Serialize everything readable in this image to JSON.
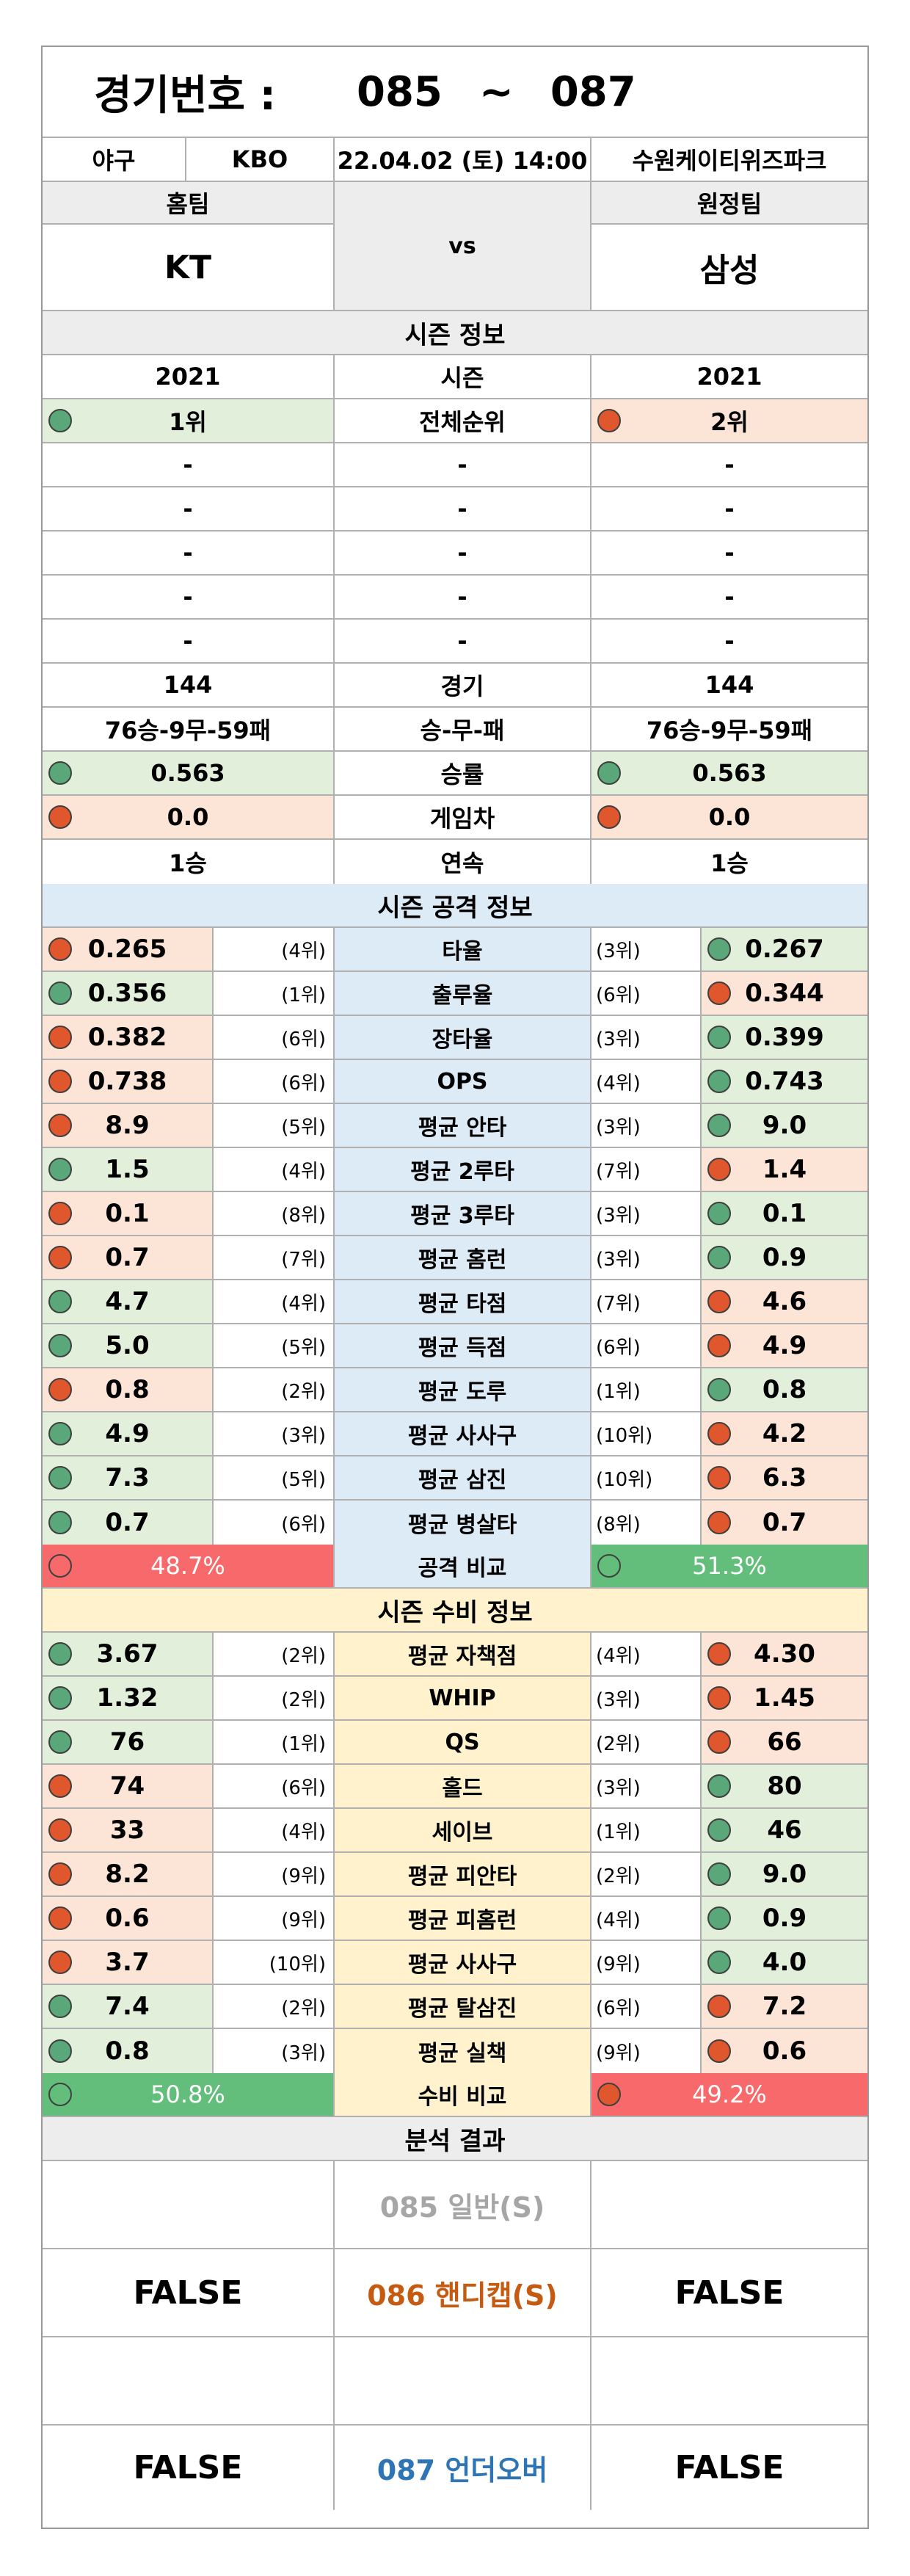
{
  "header": {
    "title_label": "경기번호 :",
    "game_from": "085",
    "tilde": "~",
    "game_to": "087",
    "sport": "야구",
    "league": "KBO",
    "datetime": "22.04.02 (토) 14:00",
    "stadium": "수원케이티위즈파크"
  },
  "teams": {
    "home_label": "홈팀",
    "away_label": "원정팀",
    "home": "KT",
    "vs": "vs",
    "away": "삼성"
  },
  "season_info": {
    "title": "시즌 정보",
    "rows": [
      {
        "label": "시즌",
        "home": "2021",
        "away": "2021"
      },
      {
        "label": "전체순위",
        "home": "1위",
        "away": "2위"
      },
      {
        "label": "-",
        "home": "-",
        "away": "-"
      },
      {
        "label": "-",
        "home": "-",
        "away": "-"
      },
      {
        "label": "-",
        "home": "-",
        "away": "-"
      },
      {
        "label": "-",
        "home": "-",
        "away": "-"
      },
      {
        "label": "-",
        "home": "-",
        "away": "-"
      },
      {
        "label": "경기",
        "home": "144",
        "away": "144"
      },
      {
        "label": "승-무-패",
        "home": "76승-9무-59패",
        "away": "76승-9무-59패"
      },
      {
        "label": "승률",
        "home": "0.563",
        "away": "0.563"
      },
      {
        "label": "게임차",
        "home": "0.0",
        "away": "0.0"
      },
      {
        "label": "연속",
        "home": "1승",
        "away": "1승"
      }
    ]
  },
  "attack": {
    "title": "시즌 공격 정보",
    "rows": [
      {
        "label": "타율",
        "home": "0.265",
        "home_rank": "(4위)",
        "away": "0.267",
        "away_rank": "(3위)"
      },
      {
        "label": "출루율",
        "home": "0.356",
        "home_rank": "(1위)",
        "away": "0.344",
        "away_rank": "(6위)"
      },
      {
        "label": "장타율",
        "home": "0.382",
        "home_rank": "(6위)",
        "away": "0.399",
        "away_rank": "(3위)"
      },
      {
        "label": "OPS",
        "home": "0.738",
        "home_rank": "(6위)",
        "away": "0.743",
        "away_rank": "(4위)"
      },
      {
        "label": "평균 안타",
        "home": "8.9",
        "home_rank": "(5위)",
        "away": "9.0",
        "away_rank": "(3위)"
      },
      {
        "label": "평균 2루타",
        "home": "1.5",
        "home_rank": "(4위)",
        "away": "1.4",
        "away_rank": "(7위)"
      },
      {
        "label": "평균 3루타",
        "home": "0.1",
        "home_rank": "(8위)",
        "away": "0.1",
        "away_rank": "(3위)"
      },
      {
        "label": "평균 홈런",
        "home": "0.7",
        "home_rank": "(7위)",
        "away": "0.9",
        "away_rank": "(3위)"
      },
      {
        "label": "평균 타점",
        "home": "4.7",
        "home_rank": "(4위)",
        "away": "4.6",
        "away_rank": "(7위)"
      },
      {
        "label": "평균 득점",
        "home": "5.0",
        "home_rank": "(5위)",
        "away": "4.9",
        "away_rank": "(6위)"
      },
      {
        "label": "평균 도루",
        "home": "0.8",
        "home_rank": "(2위)",
        "away": "0.8",
        "away_rank": "(1위)"
      },
      {
        "label": "평균 사사구",
        "home": "4.9",
        "home_rank": "(3위)",
        "away": "4.2",
        "away_rank": "(10위)"
      },
      {
        "label": "평균 삼진",
        "home": "7.3",
        "home_rank": "(5위)",
        "away": "6.3",
        "away_rank": "(10위)"
      },
      {
        "label": "평균 병살타",
        "home": "0.7",
        "home_rank": "(6위)",
        "away": "0.7",
        "away_rank": "(8위)"
      }
    ],
    "compare_label": "공격 비교",
    "home_pct": "48.7%",
    "away_pct": "51.3%"
  },
  "defense": {
    "title": "시즌 수비 정보",
    "rows": [
      {
        "label": "평균 자책점",
        "home": "3.67",
        "home_rank": "(2위)",
        "away": "4.30",
        "away_rank": "(4위)"
      },
      {
        "label": "WHIP",
        "home": "1.32",
        "home_rank": "(2위)",
        "away": "1.45",
        "away_rank": "(3위)"
      },
      {
        "label": "QS",
        "home": "76",
        "home_rank": "(1위)",
        "away": "66",
        "away_rank": "(2위)"
      },
      {
        "label": "홀드",
        "home": "74",
        "home_rank": "(6위)",
        "away": "80",
        "away_rank": "(3위)"
      },
      {
        "label": "세이브",
        "home": "33",
        "home_rank": "(4위)",
        "away": "46",
        "away_rank": "(1위)"
      },
      {
        "label": "평균 피안타",
        "home": "8.2",
        "home_rank": "(9위)",
        "away": "9.0",
        "away_rank": "(2위)"
      },
      {
        "label": "평균 피홈런",
        "home": "0.6",
        "home_rank": "(9위)",
        "away": "0.9",
        "away_rank": "(4위)"
      },
      {
        "label": "평균 사사구",
        "home": "3.7",
        "home_rank": "(10위)",
        "away": "4.0",
        "away_rank": "(9위)"
      },
      {
        "label": "평균 탈삼진",
        "home": "7.4",
        "home_rank": "(2위)",
        "away": "7.2",
        "away_rank": "(6위)"
      },
      {
        "label": "평균 실책",
        "home": "0.8",
        "home_rank": "(3위)",
        "away": "0.6",
        "away_rank": "(9위)"
      }
    ],
    "compare_label": "수비 비교",
    "home_pct": "50.8%",
    "away_pct": "49.2%"
  },
  "analysis": {
    "title": "분석 결과",
    "general_label": "085 일반(S)",
    "handicap_label": "086 핸디캡(S)",
    "handicap_home": "FALSE",
    "handicap_away": "FALSE",
    "underover_label": "087 언더오버",
    "underover_home": "FALSE",
    "underover_away": "FALSE"
  },
  "colors": {
    "good_bg": "#e2efda",
    "bad_bg": "#fce4d6",
    "good_dot": "#5aa77a",
    "bad_dot": "#e0572e",
    "attack_bg": "#ddebf7",
    "defense_bg": "#fff2cc",
    "compare_good": "#63be7b",
    "compare_bad": "#f8696b",
    "general_text": "#a6a6a6",
    "handicap_text": "#c55a11",
    "underover_text": "#2e75b6"
  }
}
